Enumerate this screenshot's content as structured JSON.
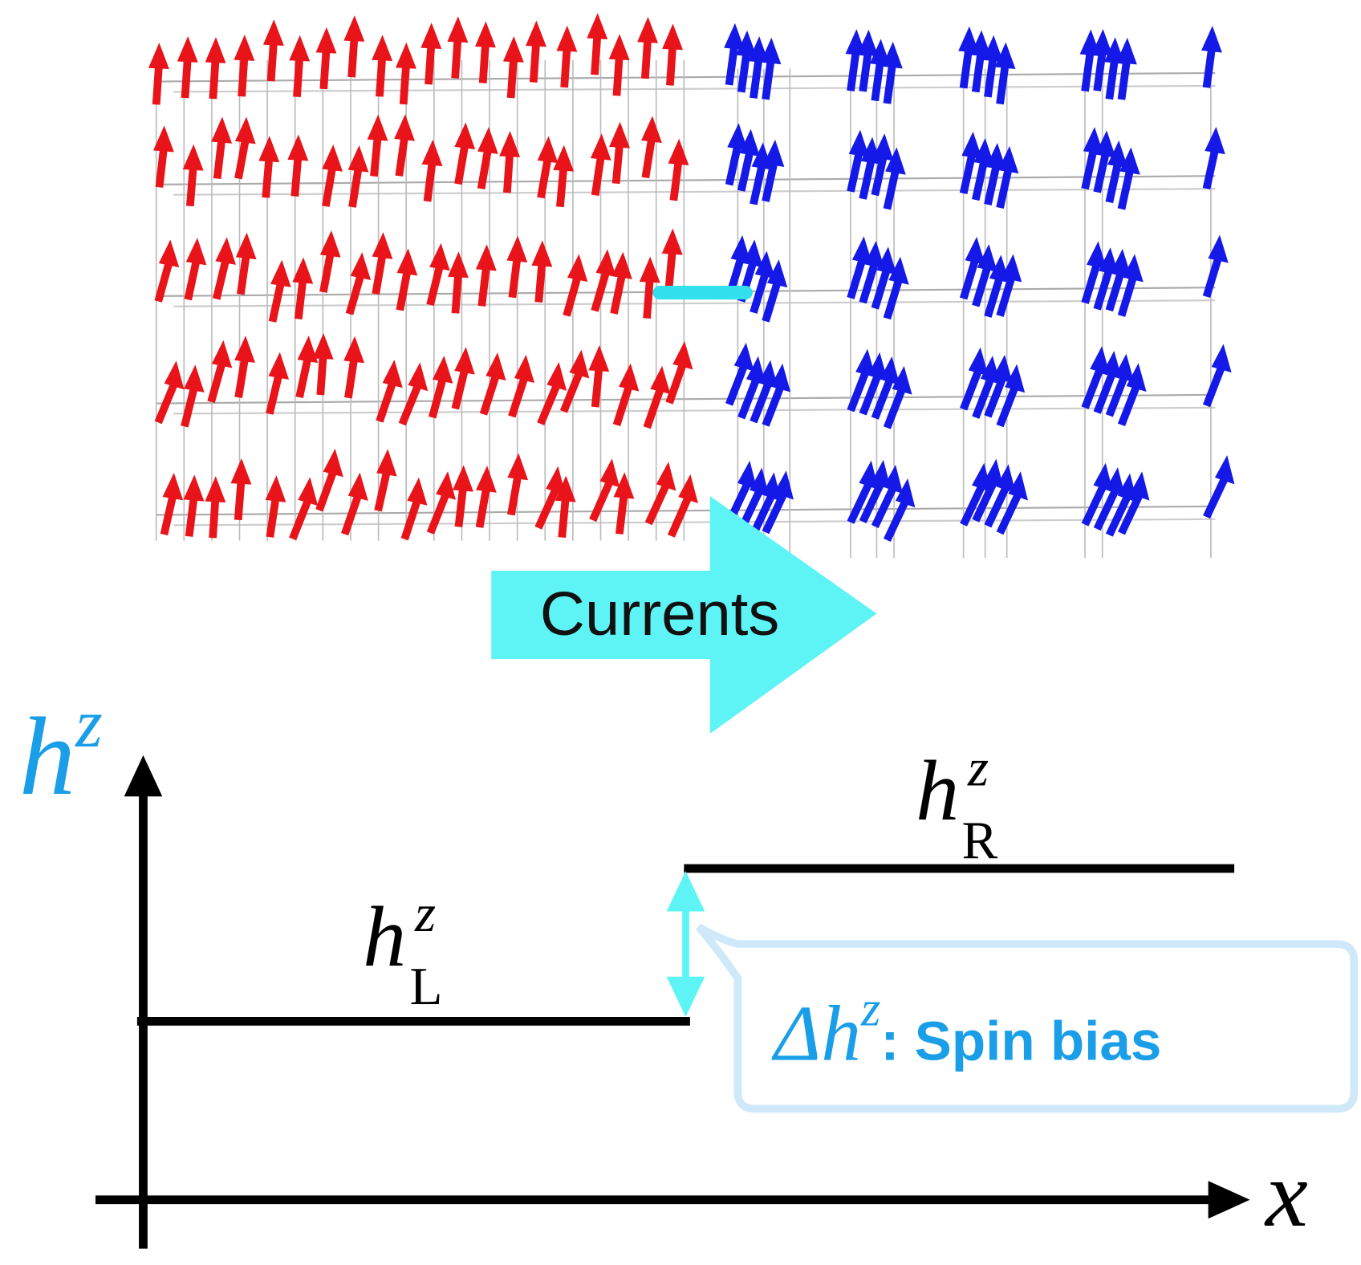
{
  "banner": "Currents",
  "axes": {
    "y": {
      "base": "h",
      "sup": "z"
    },
    "x": "x"
  },
  "levels": {
    "right": {
      "base": "h",
      "sup": "z",
      "sub": "R"
    },
    "left": {
      "base": "h",
      "sup": "z",
      "sub": "L"
    }
  },
  "bias": {
    "delta": "Δ",
    "base": "h",
    "sup": "z",
    "text": ": Spin bias"
  }
}
